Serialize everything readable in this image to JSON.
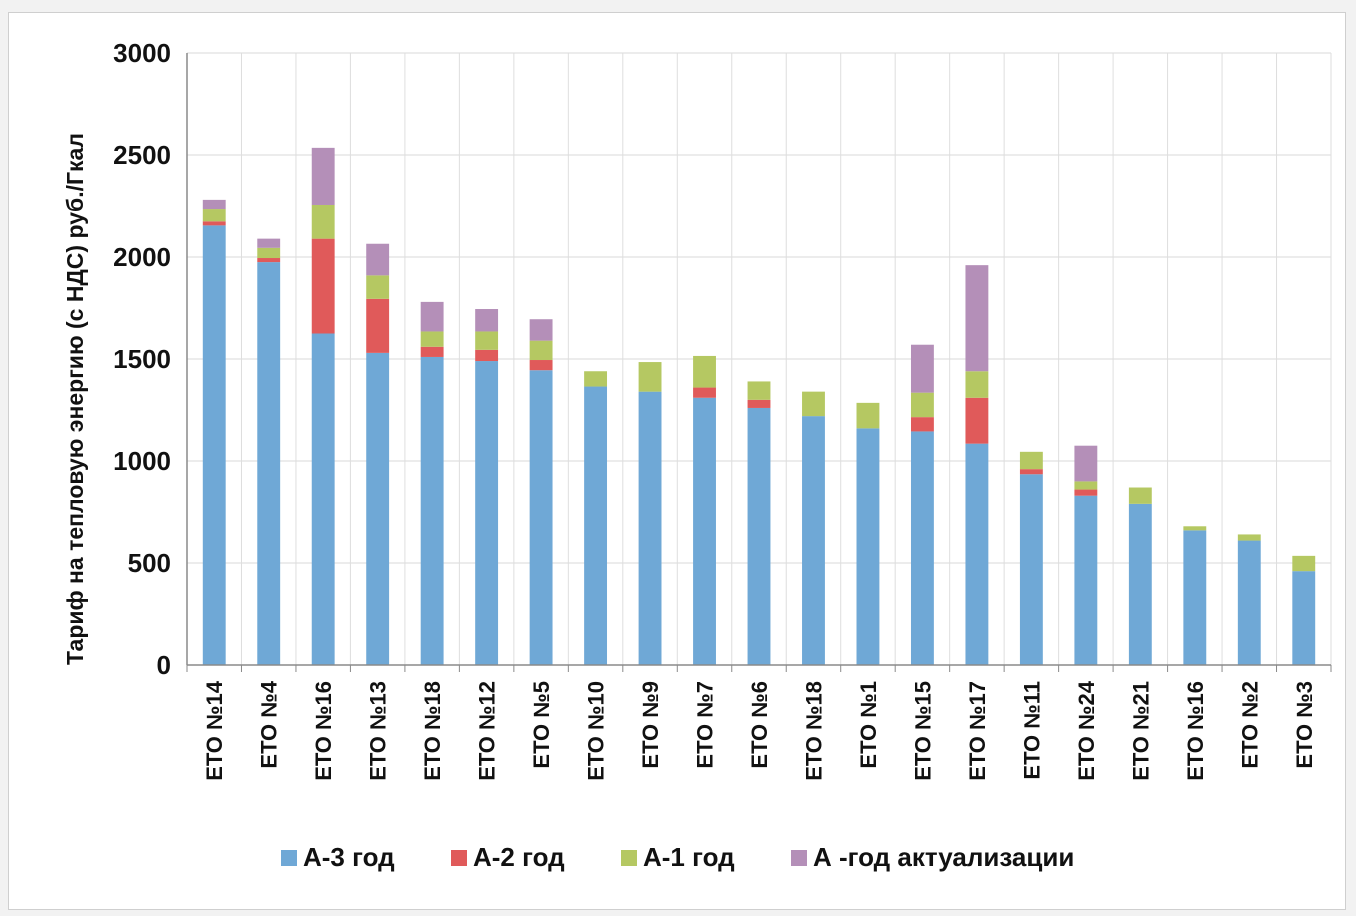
{
  "chart_data": {
    "type": "bar",
    "stacked": true,
    "title": "",
    "xlabel": "",
    "ylabel": "Тариф на тепловую энергию (с НДС) руб./Гкал",
    "ylim": [
      0,
      3000
    ],
    "yticks": [
      0,
      500,
      1000,
      1500,
      2000,
      2500,
      3000
    ],
    "grid": true,
    "legend_position": "bottom",
    "categories": [
      "ЕТО №14",
      "ЕТО №4",
      "ЕТО №16",
      "ЕТО №13",
      "ЕТО №18",
      "ЕТО №12",
      "ЕТО №5",
      "ЕТО №10",
      "ЕТО №9",
      "ЕТО №7",
      "ЕТО №6",
      "ЕТО №18",
      "ЕТО №1",
      "ЕТО №15",
      "ЕТО №17",
      "ЕТО №11",
      "ЕТО №24",
      "ЕТО №21",
      "ЕТО №16",
      "ЕТО №2",
      "ЕТО №3"
    ],
    "series": [
      {
        "name": "А-3 год",
        "color": "#6fa8d6",
        "values": [
          2155,
          1975,
          1625,
          1530,
          1510,
          1490,
          1445,
          1365,
          1340,
          1310,
          1260,
          1220,
          1160,
          1145,
          1085,
          935,
          830,
          790,
          660,
          610,
          460
        ]
      },
      {
        "name": "А-2 год",
        "color": "#e05a5a",
        "values": [
          20,
          20,
          465,
          265,
          50,
          55,
          50,
          0,
          0,
          50,
          40,
          0,
          0,
          70,
          225,
          25,
          30,
          0,
          0,
          0,
          0
        ]
      },
      {
        "name": "А-1 год",
        "color": "#b5c862",
        "values": [
          60,
          50,
          165,
          115,
          75,
          90,
          95,
          75,
          145,
          155,
          90,
          120,
          125,
          120,
          130,
          85,
          40,
          80,
          20,
          30,
          75
        ]
      },
      {
        "name": "А -год актуализации",
        "color": "#b48fb8",
        "values": [
          45,
          45,
          280,
          155,
          145,
          110,
          105,
          0,
          0,
          0,
          0,
          0,
          0,
          235,
          520,
          0,
          175,
          0,
          0,
          0,
          0
        ]
      }
    ]
  }
}
